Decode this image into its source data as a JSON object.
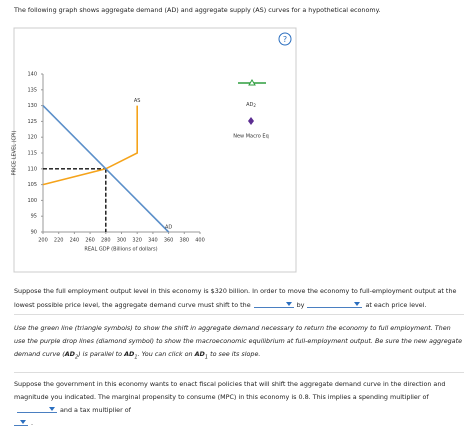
{
  "intro": "The following graph shows aggregate demand (AD) and aggregate supply (AS) curves for a hypothetical economy.",
  "help": "?",
  "chart_data": {
    "type": "line",
    "ylabel": "PRICE LEVEL (CPI)",
    "xlabel": "REAL GDP (Billions of dollars)",
    "series": [
      {
        "name": "AS",
        "color": "#f5a31a",
        "x": [
          200,
          280,
          320,
          320
        ],
        "values": [
          105,
          110,
          115,
          130
        ]
      },
      {
        "name": "AD",
        "color": "#5b8fc9",
        "x": [
          200,
          280,
          360
        ],
        "values": [
          130,
          110,
          90
        ]
      }
    ],
    "drop_lines": {
      "x": 280,
      "y": 110
    },
    "xlim": [
      200,
      400
    ],
    "xticks": [
      200,
      220,
      240,
      260,
      280,
      300,
      320,
      340,
      360,
      380,
      400
    ],
    "ylim": [
      90,
      140
    ],
    "yticks": [
      90,
      95,
      100,
      105,
      110,
      115,
      120,
      125,
      130,
      135,
      140
    ]
  },
  "tools": [
    {
      "label": "AD",
      "sub": "2",
      "color": "#2e9e3e"
    },
    {
      "label": "New Macro Eq",
      "color": "#5c2d91"
    }
  ],
  "part1": [
    "Suppose the full employment output level in this economy is $320 billion. In order to move the economy to full-employment output at the lowest possible price level, the aggregate demand curve must shift to the",
    "by",
    "at each price level."
  ],
  "part2": [
    "Use the green line (triangle symbols) to show the shift in aggregate demand necessary to return the economy to full employment. Then use the purple drop lines (diamond symbol) to show the macroeconomic equilibrium at full-employment output. Be sure the new aggregate demand curve (",
    "AD",
    "2",
    ") is parallel to ",
    "AD",
    "1",
    ". You can click on ",
    "AD",
    "1",
    " to see its slope."
  ],
  "part3": [
    "Suppose the government in this economy wants to enact fiscal policies that will shift the aggregate demand curve in the direction and magnitude you indicated. The marginal propensity to consume (MPC) in this economy is 0.8. This implies a spending multiplier of",
    "and a tax multiplier of",
    "."
  ]
}
